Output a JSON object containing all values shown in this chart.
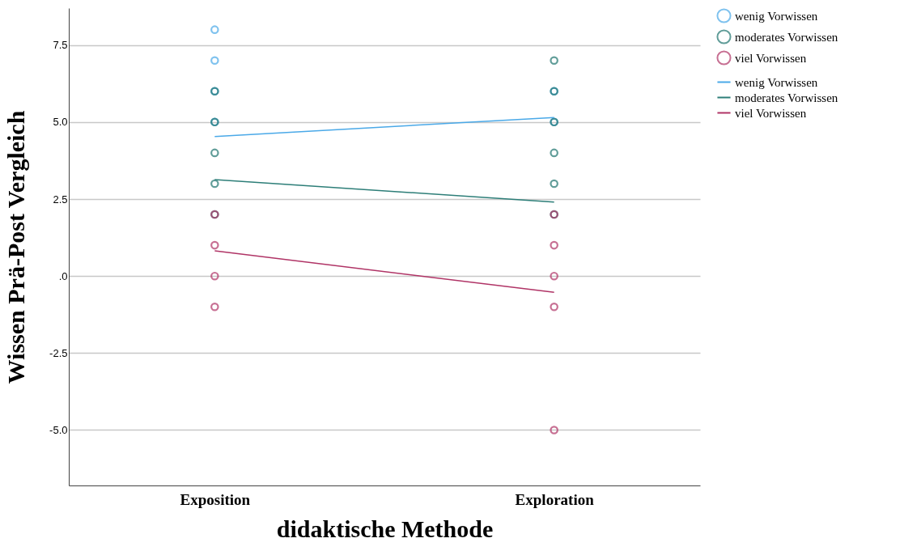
{
  "chart_data": {
    "type": "scatter",
    "xlabel": "didaktische Methode",
    "ylabel": "Wissen Prä-Post Vergleich",
    "categories": [
      "Exposition",
      "Exploration"
    ],
    "ylim": [
      -6.8,
      8.7
    ],
    "yticks": [
      {
        "value": -5,
        "label": "-5.0"
      },
      {
        "value": -2.5,
        "label": "-2.5"
      },
      {
        "value": 0,
        "label": ".0"
      },
      {
        "value": 2.5,
        "label": "2.5"
      },
      {
        "value": 5,
        "label": "5.0"
      },
      {
        "value": 7.5,
        "label": "7.5"
      }
    ],
    "grid": "y",
    "legend": "top right",
    "series": [
      {
        "name": "wenig Vorwissen",
        "color": "#4aa9e8",
        "x": [
          "Exposition",
          "Exposition",
          "Exposition",
          "Exposition",
          "Exploration",
          "Exploration"
        ],
        "values": [
          8,
          7,
          6,
          5,
          6,
          5
        ]
      },
      {
        "name": "moderates Vorwissen",
        "color": "#1f756f",
        "x": [
          "Exposition",
          "Exposition",
          "Exposition",
          "Exposition",
          "Exposition",
          "Exploration",
          "Exploration",
          "Exploration",
          "Exploration",
          "Exploration",
          "Exploration"
        ],
        "values": [
          6,
          5,
          4,
          3,
          2,
          7,
          6,
          5,
          4,
          3,
          2
        ]
      },
      {
        "name": "viel Vorwissen",
        "color": "#b03466",
        "x": [
          "Exposition",
          "Exposition",
          "Exposition",
          "Exposition",
          "Exploration",
          "Exploration",
          "Exploration",
          "Exploration",
          "Exploration"
        ],
        "values": [
          2,
          1,
          0,
          -1,
          2,
          1,
          0,
          -1,
          -5
        ]
      },
      {
        "name": "wenig Vorwissen",
        "type": "line",
        "color": "#4aa9e8",
        "x": [
          "Exposition",
          "Exploration"
        ],
        "values": [
          4.53,
          5.15
        ]
      },
      {
        "name": "moderates Vorwissen",
        "type": "line",
        "color": "#2d7e78",
        "x": [
          "Exposition",
          "Exploration"
        ],
        "values": [
          3.13,
          2.4
        ]
      },
      {
        "name": "viel Vorwissen",
        "type": "line",
        "color": "#b03466",
        "x": [
          "Exposition",
          "Exploration"
        ],
        "values": [
          0.82,
          -0.53
        ]
      }
    ]
  }
}
